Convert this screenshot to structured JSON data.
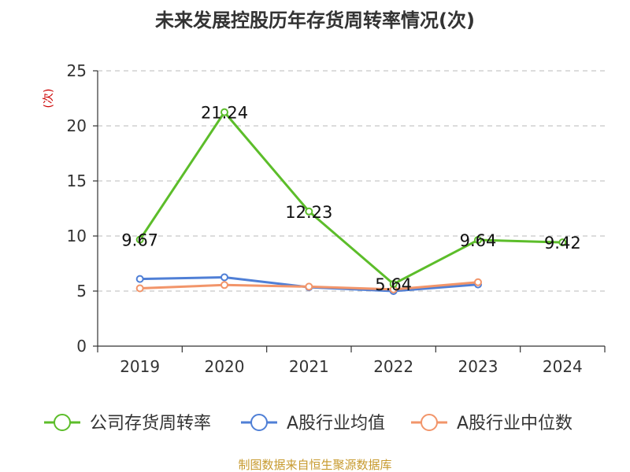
{
  "chart_data": {
    "type": "line",
    "title": "未来发展控股历年存货周转率情况(次)",
    "ylabel": "(次)",
    "categories": [
      "2019",
      "2020",
      "2021",
      "2022",
      "2023",
      "2024"
    ],
    "ylim": [
      0,
      25
    ],
    "yticks": [
      0,
      5,
      10,
      15,
      20,
      25
    ],
    "grid": true,
    "legend_position": "bottom",
    "series": [
      {
        "name": "公司存货周转率",
        "color": "#5cbd2a",
        "show_labels": true,
        "labels": [
          "9.67",
          "21.24",
          "12.23",
          "5.64",
          "9.64",
          "9.42"
        ],
        "values": [
          9.67,
          21.24,
          12.23,
          5.64,
          9.64,
          9.42
        ]
      },
      {
        "name": "A股行业均值",
        "color": "#4f7fd6",
        "show_labels": false,
        "values": [
          6.1,
          6.25,
          5.35,
          5.0,
          5.6,
          null
        ]
      },
      {
        "name": "A股行业中位数",
        "color": "#f2956a",
        "show_labels": false,
        "values": [
          5.25,
          5.55,
          5.4,
          5.15,
          5.8,
          null
        ]
      }
    ]
  },
  "source": "制图数据来自恒生聚源数据库"
}
